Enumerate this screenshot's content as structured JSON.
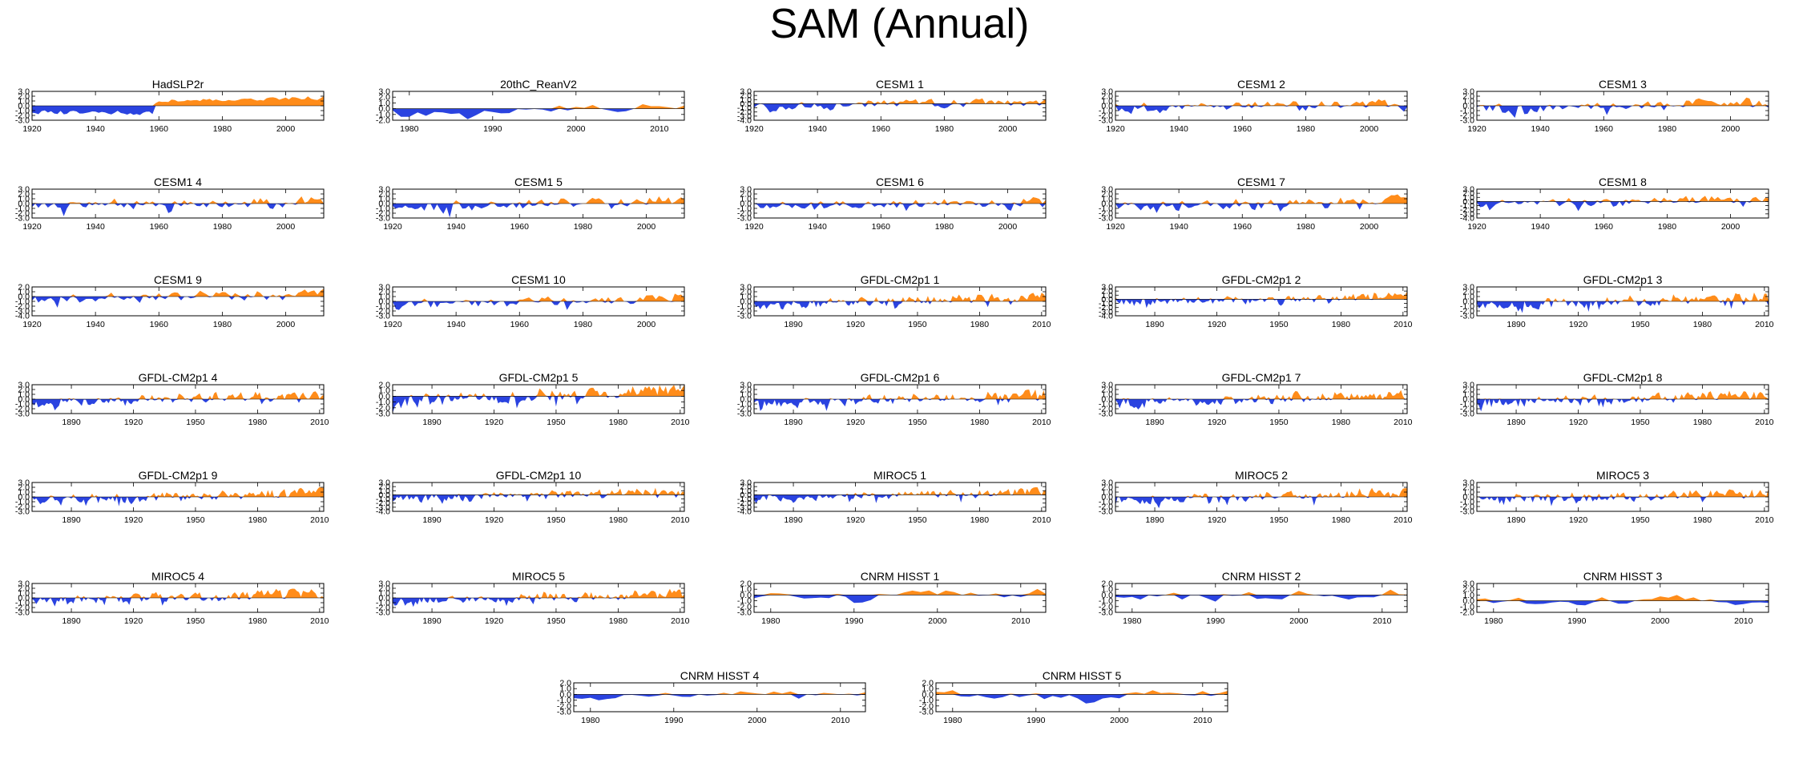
{
  "figure_title": "SAM (Annual)",
  "colors": {
    "positive": "#ff8c1a",
    "negative": "#2a43e0",
    "frame": "#000000"
  },
  "chart_data": [
    {
      "type": "area",
      "title": "HadSLP2r",
      "x_range": [
        1920,
        2012
      ],
      "xticks": [
        1920,
        1940,
        1960,
        1980,
        2000
      ],
      "ylim": [
        -3,
        3
      ],
      "yticks": [
        "3.0",
        "2.0",
        "1.0",
        "0.0",
        "-1.0",
        "-2.0",
        "-3.0"
      ],
      "seed": 11,
      "trend": 1.6,
      "shape": "hadslp"
    },
    {
      "type": "area",
      "title": "20thC_ReanV2",
      "x_range": [
        1978,
        2013
      ],
      "xticks": [
        1980,
        1990,
        2000,
        2010
      ],
      "ylim": [
        -2,
        3
      ],
      "yticks": [
        "3.0",
        "2.0",
        "1.0",
        "0.0",
        "-1.0",
        "-2.0"
      ],
      "seed": 23,
      "trend": 1.2,
      "smooth": 1
    },
    {
      "type": "area",
      "title": "CESM1 1",
      "x_range": [
        1920,
        2012
      ],
      "xticks": [
        1920,
        1940,
        1960,
        1980,
        2000
      ],
      "ylim": [
        -4,
        3
      ],
      "yticks": [
        "3.0",
        "2.0",
        "1.0",
        "0.0",
        "-1.0",
        "-2.0",
        "-3.0",
        "-4.0"
      ],
      "seed": 31,
      "trend": 1.0
    },
    {
      "type": "area",
      "title": "CESM1 2",
      "x_range": [
        1920,
        2012
      ],
      "xticks": [
        1920,
        1940,
        1960,
        1980,
        2000
      ],
      "ylim": [
        -3,
        3
      ],
      "yticks": [
        "3.0",
        "2.0",
        "1.0",
        "0.0",
        "-1.0",
        "-2.0",
        "-3.0"
      ],
      "seed": 41,
      "trend": 1.1
    },
    {
      "type": "area",
      "title": "CESM1 3",
      "x_range": [
        1920,
        2012
      ],
      "xticks": [
        1920,
        1940,
        1960,
        1980,
        2000
      ],
      "ylim": [
        -3,
        3
      ],
      "yticks": [
        "3.0",
        "2.0",
        "1.0",
        "0.0",
        "-1.0",
        "-2.0",
        "-3.0"
      ],
      "seed": 53,
      "trend": 1.2
    },
    {
      "type": "area",
      "title": "CESM1 4",
      "x_range": [
        1920,
        2012
      ],
      "xticks": [
        1920,
        1940,
        1960,
        1980,
        2000
      ],
      "ylim": [
        -3,
        3
      ],
      "yticks": [
        "3.0",
        "2.0",
        "1.0",
        "0.0",
        "-1.0",
        "-2.0",
        "-3.0"
      ],
      "seed": 61,
      "trend": 0.9
    },
    {
      "type": "area",
      "title": "CESM1 5",
      "x_range": [
        1920,
        2012
      ],
      "xticks": [
        1920,
        1940,
        1960,
        1980,
        2000
      ],
      "ylim": [
        -3,
        3
      ],
      "yticks": [
        "3.0",
        "2.0",
        "1.0",
        "0.0",
        "-1.0",
        "-2.0",
        "-3.0"
      ],
      "seed": 71,
      "trend": 1.3
    },
    {
      "type": "area",
      "title": "CESM1 6",
      "x_range": [
        1920,
        2012
      ],
      "xticks": [
        1920,
        1940,
        1960,
        1980,
        2000
      ],
      "ylim": [
        -3,
        3
      ],
      "yticks": [
        "3.0",
        "2.0",
        "1.0",
        "0.0",
        "-1.0",
        "-2.0",
        "-3.0"
      ],
      "seed": 83,
      "trend": 1.0
    },
    {
      "type": "area",
      "title": "CESM1 7",
      "x_range": [
        1920,
        2012
      ],
      "xticks": [
        1920,
        1940,
        1960,
        1980,
        2000
      ],
      "ylim": [
        -3,
        3
      ],
      "yticks": [
        "3.0",
        "2.0",
        "1.0",
        "0.0",
        "-1.0",
        "-2.0",
        "-3.0"
      ],
      "seed": 97,
      "trend": 1.1
    },
    {
      "type": "area",
      "title": "CESM1 8",
      "x_range": [
        1920,
        2012
      ],
      "xticks": [
        1920,
        1940,
        1960,
        1980,
        2000
      ],
      "ylim": [
        -4,
        3
      ],
      "yticks": [
        "3.0",
        "2.0",
        "1.0",
        "0.0",
        "-1.0",
        "-2.0",
        "-3.0",
        "-4.0"
      ],
      "seed": 101,
      "trend": 1.0
    },
    {
      "type": "area",
      "title": "CESM1 9",
      "x_range": [
        1920,
        2012
      ],
      "xticks": [
        1920,
        1940,
        1960,
        1980,
        2000
      ],
      "ylim": [
        -4,
        2
      ],
      "yticks": [
        "2.0",
        "1.0",
        "0.0",
        "-1.0",
        "-2.0",
        "-3.0",
        "-4.0"
      ],
      "seed": 113,
      "trend": 1.1
    },
    {
      "type": "area",
      "title": "CESM1 10",
      "x_range": [
        1920,
        2012
      ],
      "xticks": [
        1920,
        1940,
        1960,
        1980,
        2000
      ],
      "ylim": [
        -3,
        3
      ],
      "yticks": [
        "3.0",
        "2.0",
        "1.0",
        "0.0",
        "-1.0",
        "-2.0",
        "-3.0"
      ],
      "seed": 127,
      "trend": 1.2
    },
    {
      "type": "area",
      "title": "GFDL-CM2p1 1",
      "x_range": [
        1871,
        2012
      ],
      "xticks": [
        1890,
        1920,
        1950,
        1980,
        2010
      ],
      "ylim": [
        -3,
        3
      ],
      "yticks": [
        "3.0",
        "2.0",
        "1.0",
        "0.0",
        "-1.0",
        "-2.0",
        "-3.0"
      ],
      "seed": 131,
      "trend": 1.4
    },
    {
      "type": "area",
      "title": "GFDL-CM2p1 2",
      "x_range": [
        1871,
        2012
      ],
      "xticks": [
        1890,
        1920,
        1950,
        1980,
        2010
      ],
      "ylim": [
        -4,
        3
      ],
      "yticks": [
        "3.0",
        "2.0",
        "1.0",
        "0.0",
        "-1.0",
        "-2.0",
        "-3.0",
        "-4.0"
      ],
      "seed": 137,
      "trend": 1.3
    },
    {
      "type": "area",
      "title": "GFDL-CM2p1 3",
      "x_range": [
        1871,
        2012
      ],
      "xticks": [
        1890,
        1920,
        1950,
        1980,
        2010
      ],
      "ylim": [
        -3,
        3
      ],
      "yticks": [
        "3.0",
        "2.0",
        "1.0",
        "0.0",
        "-1.0",
        "-2.0",
        "-3.0"
      ],
      "seed": 149,
      "trend": 1.5
    },
    {
      "type": "area",
      "title": "GFDL-CM2p1 4",
      "x_range": [
        1871,
        2012
      ],
      "xticks": [
        1890,
        1920,
        1950,
        1980,
        2010
      ],
      "ylim": [
        -3,
        3
      ],
      "yticks": [
        "3.0",
        "2.0",
        "1.0",
        "0.0",
        "-1.0",
        "-2.0",
        "-3.0"
      ],
      "seed": 157,
      "trend": 1.5
    },
    {
      "type": "area",
      "title": "GFDL-CM2p1 5",
      "x_range": [
        1871,
        2012
      ],
      "xticks": [
        1890,
        1920,
        1950,
        1980,
        2010
      ],
      "ylim": [
        -3,
        2
      ],
      "yticks": [
        "2.0",
        "1.0",
        "0.0",
        "-1.0",
        "-2.0",
        "-3.0"
      ],
      "seed": 163,
      "trend": 1.6
    },
    {
      "type": "area",
      "title": "GFDL-CM2p1 6",
      "x_range": [
        1871,
        2012
      ],
      "xticks": [
        1890,
        1920,
        1950,
        1980,
        2010
      ],
      "ylim": [
        -3,
        3
      ],
      "yticks": [
        "3.0",
        "2.0",
        "1.0",
        "0.0",
        "-1.0",
        "-2.0",
        "-3.0"
      ],
      "seed": 173,
      "trend": 1.4
    },
    {
      "type": "area",
      "title": "GFDL-CM2p1 7",
      "x_range": [
        1871,
        2012
      ],
      "xticks": [
        1890,
        1920,
        1950,
        1980,
        2010
      ],
      "ylim": [
        -3,
        3
      ],
      "yticks": [
        "3.0",
        "2.0",
        "1.0",
        "0.0",
        "-1.0",
        "-2.0",
        "-3.0"
      ],
      "seed": 179,
      "trend": 1.4
    },
    {
      "type": "area",
      "title": "GFDL-CM2p1 8",
      "x_range": [
        1871,
        2012
      ],
      "xticks": [
        1890,
        1920,
        1950,
        1980,
        2010
      ],
      "ylim": [
        -3,
        3
      ],
      "yticks": [
        "3.0",
        "2.0",
        "1.0",
        "0.0",
        "-1.0",
        "-2.0",
        "-3.0"
      ],
      "seed": 191,
      "trend": 1.5
    },
    {
      "type": "area",
      "title": "GFDL-CM2p1 9",
      "x_range": [
        1871,
        2012
      ],
      "xticks": [
        1890,
        1920,
        1950,
        1980,
        2010
      ],
      "ylim": [
        -3,
        3
      ],
      "yticks": [
        "3.0",
        "2.0",
        "1.0",
        "0.0",
        "-1.0",
        "-2.0",
        "-3.0"
      ],
      "seed": 193,
      "trend": 1.4
    },
    {
      "type": "area",
      "title": "GFDL-CM2p1 10",
      "x_range": [
        1871,
        2012
      ],
      "xticks": [
        1890,
        1920,
        1950,
        1980,
        2010
      ],
      "ylim": [
        -4,
        3
      ],
      "yticks": [
        "3.0",
        "2.0",
        "1.0",
        "0.0",
        "-1.0",
        "-2.0",
        "-3.0",
        "-4.0"
      ],
      "seed": 197,
      "trend": 1.5
    },
    {
      "type": "area",
      "title": "MIROC5 1",
      "x_range": [
        1871,
        2012
      ],
      "xticks": [
        1890,
        1920,
        1950,
        1980,
        2010
      ],
      "ylim": [
        -4,
        3
      ],
      "yticks": [
        "3.0",
        "2.0",
        "1.0",
        "0.0",
        "-1.0",
        "-2.0",
        "-3.0",
        "-4.0"
      ],
      "seed": 199,
      "trend": 1.3
    },
    {
      "type": "area",
      "title": "MIROC5 2",
      "x_range": [
        1871,
        2012
      ],
      "xticks": [
        1890,
        1920,
        1950,
        1980,
        2010
      ],
      "ylim": [
        -3,
        3
      ],
      "yticks": [
        "3.0",
        "2.0",
        "1.0",
        "0.0",
        "-1.0",
        "-2.0",
        "-3.0"
      ],
      "seed": 211,
      "trend": 1.3
    },
    {
      "type": "area",
      "title": "MIROC5 3",
      "x_range": [
        1871,
        2012
      ],
      "xticks": [
        1890,
        1920,
        1950,
        1980,
        2010
      ],
      "ylim": [
        -3,
        3
      ],
      "yticks": [
        "3.0",
        "2.0",
        "1.0",
        "0.0",
        "-1.0",
        "-2.0",
        "-3.0"
      ],
      "seed": 223,
      "trend": 1.2
    },
    {
      "type": "area",
      "title": "MIROC5 4",
      "x_range": [
        1871,
        2012
      ],
      "xticks": [
        1890,
        1920,
        1950,
        1980,
        2010
      ],
      "ylim": [
        -3,
        3
      ],
      "yticks": [
        "3.0",
        "2.0",
        "1.0",
        "0.0",
        "-1.0",
        "-2.0",
        "-3.0"
      ],
      "seed": 227,
      "trend": 1.4
    },
    {
      "type": "area",
      "title": "MIROC5 5",
      "x_range": [
        1871,
        2012
      ],
      "xticks": [
        1890,
        1920,
        1950,
        1980,
        2010
      ],
      "ylim": [
        -3,
        3
      ],
      "yticks": [
        "3.0",
        "2.0",
        "1.0",
        "0.0",
        "-1.0",
        "-2.0",
        "-3.0"
      ],
      "seed": 229,
      "trend": 1.4
    },
    {
      "type": "area",
      "title": "CNRM HISST 1",
      "x_range": [
        1978,
        2013
      ],
      "xticks": [
        1980,
        1990,
        2000,
        2010
      ],
      "ylim": [
        -3,
        2
      ],
      "yticks": [
        "2.0",
        "1.0",
        "0.0",
        "-1.0",
        "-2.0",
        "-3.0"
      ],
      "seed": 233,
      "trend": 0.6,
      "smooth": 1
    },
    {
      "type": "area",
      "title": "CNRM HISST 2",
      "x_range": [
        1978,
        2013
      ],
      "xticks": [
        1980,
        1990,
        2000,
        2010
      ],
      "ylim": [
        -3,
        2
      ],
      "yticks": [
        "2.0",
        "1.0",
        "0.0",
        "-1.0",
        "-2.0",
        "-3.0"
      ],
      "seed": 239,
      "trend": 0.6,
      "smooth": 1
    },
    {
      "type": "area",
      "title": "CNRM HISST 3",
      "x_range": [
        1978,
        2013
      ],
      "xticks": [
        1980,
        1990,
        2000,
        2010
      ],
      "ylim": [
        -2,
        3
      ],
      "yticks": [
        "3.0",
        "2.0",
        "1.0",
        "0.0",
        "-1.0",
        "-2.0"
      ],
      "seed": 241,
      "trend": 0.4,
      "smooth": 1
    },
    {
      "type": "area",
      "title": "CNRM HISST 4",
      "x_range": [
        1978,
        2013
      ],
      "xticks": [
        1980,
        1990,
        2000,
        2010
      ],
      "ylim": [
        -3,
        2
      ],
      "yticks": [
        "2.0",
        "1.0",
        "0.0",
        "-1.0",
        "-2.0",
        "-3.0"
      ],
      "seed": 251,
      "trend": 0.6,
      "smooth": 1
    },
    {
      "type": "area",
      "title": "CNRM HISST 5",
      "x_range": [
        1978,
        2013
      ],
      "xticks": [
        1980,
        1990,
        2000,
        2010
      ],
      "ylim": [
        -3,
        2
      ],
      "yticks": [
        "2.0",
        "1.0",
        "0.0",
        "-1.0",
        "-2.0",
        "-3.0"
      ],
      "seed": 257,
      "trend": 0.6,
      "smooth": 1
    }
  ]
}
